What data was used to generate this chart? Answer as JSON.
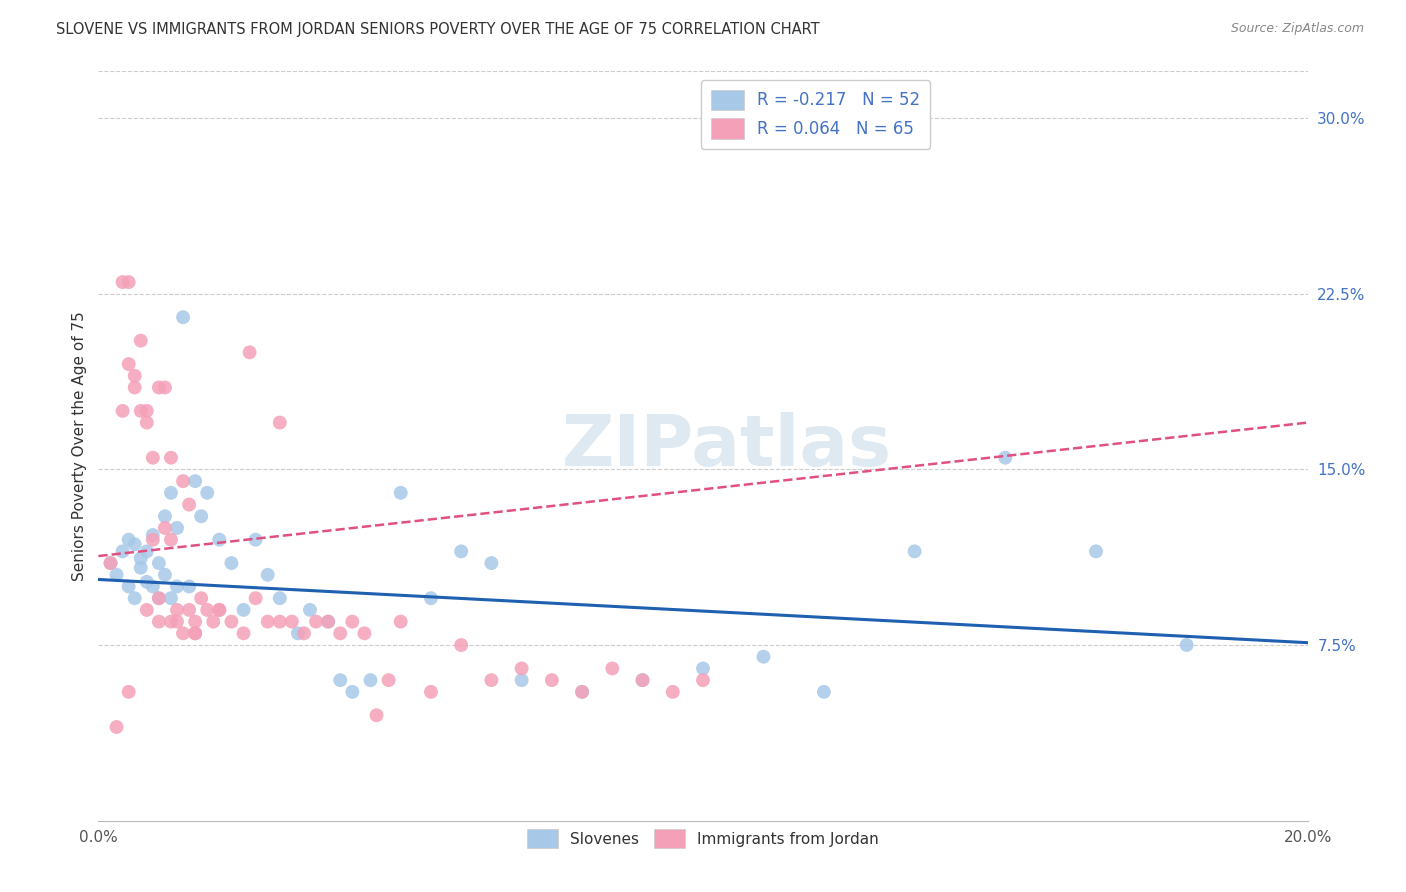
{
  "title": "SLOVENE VS IMMIGRANTS FROM JORDAN SENIORS POVERTY OVER THE AGE OF 75 CORRELATION CHART",
  "source": "Source: ZipAtlas.com",
  "ylabel": "Seniors Poverty Over the Age of 75",
  "xlim": [
    0.0,
    0.2
  ],
  "ylim": [
    0.0,
    0.32
  ],
  "xticks": [
    0.0,
    0.05,
    0.1,
    0.15,
    0.2
  ],
  "xticklabels": [
    "0.0%",
    "",
    "",
    "",
    "20.0%"
  ],
  "yticks_right": [
    0.075,
    0.15,
    0.225,
    0.3
  ],
  "ytick_labels_right": [
    "7.5%",
    "15.0%",
    "22.5%",
    "30.0%"
  ],
  "legend_blue_label": "R = -0.217   N = 52",
  "legend_pink_label": "R = 0.064   N = 65",
  "legend_bottom_blue": "Slovenes",
  "legend_bottom_pink": "Immigrants from Jordan",
  "blue_color": "#a8c8e8",
  "pink_color": "#f4a0b8",
  "blue_line_color": "#2060b0",
  "pink_line_color": "#e05080",
  "watermark": "ZIPatlas",
  "blue_scatter_x": [
    0.002,
    0.003,
    0.004,
    0.005,
    0.005,
    0.006,
    0.006,
    0.007,
    0.007,
    0.008,
    0.008,
    0.009,
    0.009,
    0.01,
    0.01,
    0.011,
    0.011,
    0.012,
    0.012,
    0.013,
    0.013,
    0.014,
    0.015,
    0.016,
    0.017,
    0.018,
    0.02,
    0.022,
    0.024,
    0.026,
    0.028,
    0.03,
    0.033,
    0.035,
    0.038,
    0.04,
    0.042,
    0.045,
    0.05,
    0.055,
    0.06,
    0.065,
    0.07,
    0.08,
    0.09,
    0.1,
    0.11,
    0.12,
    0.135,
    0.15,
    0.165,
    0.18
  ],
  "blue_scatter_y": [
    0.11,
    0.105,
    0.115,
    0.1,
    0.12,
    0.095,
    0.118,
    0.112,
    0.108,
    0.102,
    0.115,
    0.1,
    0.122,
    0.095,
    0.11,
    0.13,
    0.105,
    0.095,
    0.14,
    0.1,
    0.125,
    0.215,
    0.1,
    0.145,
    0.13,
    0.14,
    0.12,
    0.11,
    0.09,
    0.12,
    0.105,
    0.095,
    0.08,
    0.09,
    0.085,
    0.06,
    0.055,
    0.06,
    0.14,
    0.095,
    0.115,
    0.11,
    0.06,
    0.055,
    0.06,
    0.065,
    0.07,
    0.055,
    0.115,
    0.155,
    0.115,
    0.075
  ],
  "pink_scatter_x": [
    0.002,
    0.003,
    0.004,
    0.004,
    0.005,
    0.005,
    0.006,
    0.006,
    0.007,
    0.007,
    0.008,
    0.008,
    0.009,
    0.009,
    0.01,
    0.01,
    0.011,
    0.011,
    0.012,
    0.012,
    0.013,
    0.013,
    0.014,
    0.014,
    0.015,
    0.015,
    0.016,
    0.016,
    0.017,
    0.018,
    0.019,
    0.02,
    0.022,
    0.024,
    0.026,
    0.028,
    0.03,
    0.032,
    0.034,
    0.036,
    0.038,
    0.04,
    0.042,
    0.044,
    0.046,
    0.048,
    0.05,
    0.055,
    0.06,
    0.065,
    0.07,
    0.075,
    0.08,
    0.085,
    0.09,
    0.095,
    0.1,
    0.03,
    0.025,
    0.02,
    0.016,
    0.012,
    0.01,
    0.008,
    0.005
  ],
  "pink_scatter_y": [
    0.11,
    0.04,
    0.175,
    0.23,
    0.23,
    0.195,
    0.185,
    0.19,
    0.175,
    0.205,
    0.175,
    0.17,
    0.12,
    0.155,
    0.185,
    0.095,
    0.185,
    0.125,
    0.155,
    0.12,
    0.09,
    0.085,
    0.08,
    0.145,
    0.09,
    0.135,
    0.08,
    0.085,
    0.095,
    0.09,
    0.085,
    0.09,
    0.085,
    0.08,
    0.095,
    0.085,
    0.17,
    0.085,
    0.08,
    0.085,
    0.085,
    0.08,
    0.085,
    0.08,
    0.045,
    0.06,
    0.085,
    0.055,
    0.075,
    0.06,
    0.065,
    0.06,
    0.055,
    0.065,
    0.06,
    0.055,
    0.06,
    0.085,
    0.2,
    0.09,
    0.08,
    0.085,
    0.085,
    0.09,
    0.055
  ],
  "blue_trend_x": [
    0.0,
    0.2
  ],
  "blue_trend_y_start": 0.103,
  "blue_trend_y_end": 0.076,
  "pink_trend_x": [
    0.0,
    0.2
  ],
  "pink_trend_y_start": 0.113,
  "pink_trend_y_end": 0.17
}
